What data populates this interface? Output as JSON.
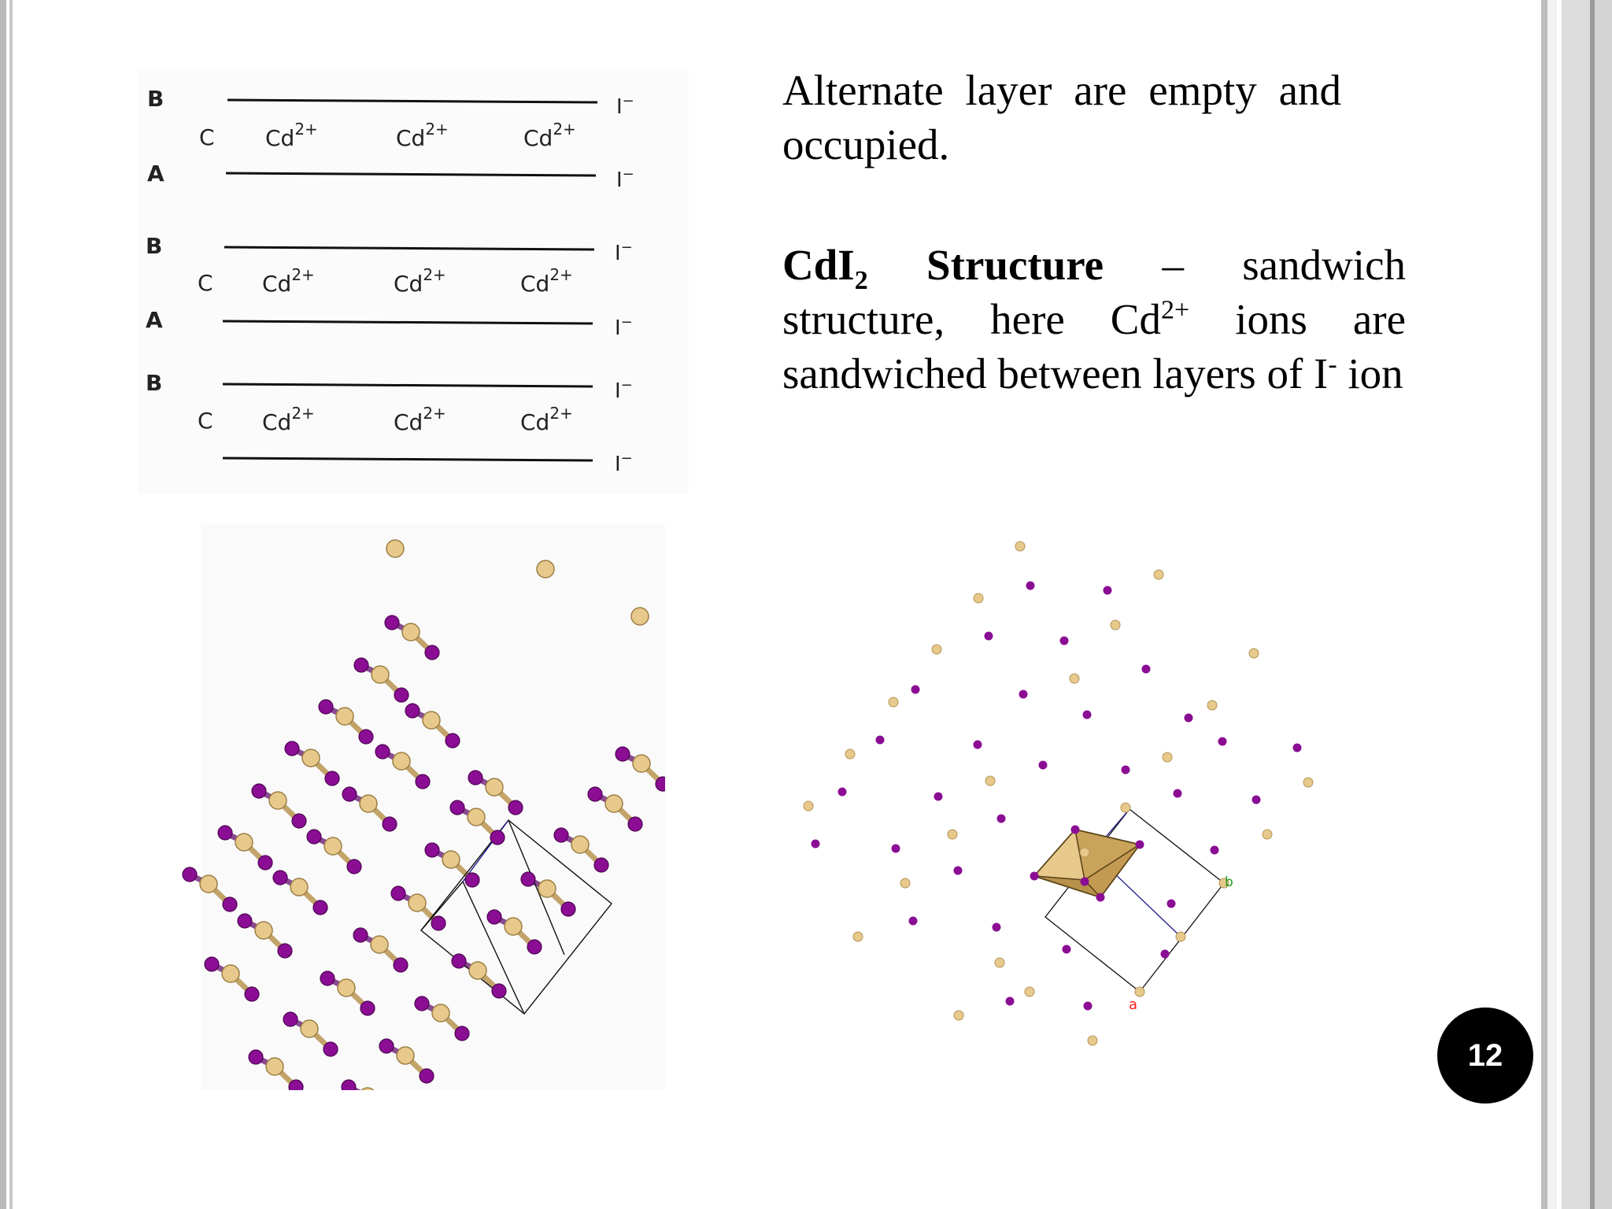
{
  "slide": {
    "page_number": "12",
    "paragraph1": "Alternate layer are empty and occupied.",
    "paragraph2": {
      "formula_base": "CdI",
      "formula_subscript": "2",
      "heading": "Structure",
      "dash": "–",
      "text_a": "sandwich structure, here Cd",
      "superscript_cd": "2+",
      "text_b": "ions are sandwiched between layers of I",
      "superscript_i": "-",
      "text_c": "ion"
    }
  },
  "layer_diagram": {
    "layer_letters": [
      "B",
      "C",
      "A",
      "B",
      "C",
      "A",
      "B",
      "C"
    ],
    "cation_label": "Cd",
    "cation_charge": "2+",
    "anion_label": "I",
    "anion_charge": "−"
  },
  "unit_cell_labels": {
    "axis_a": "a",
    "axis_b": "b"
  },
  "colors": {
    "cadmium_atom": "#e8c98c",
    "iodine_atom": "#8a0d94",
    "bond": "#000000",
    "polyhedron": "#d9b36c",
    "axis_a": "#ff2020",
    "axis_b": "#22a022",
    "page_badge": "#000000"
  }
}
